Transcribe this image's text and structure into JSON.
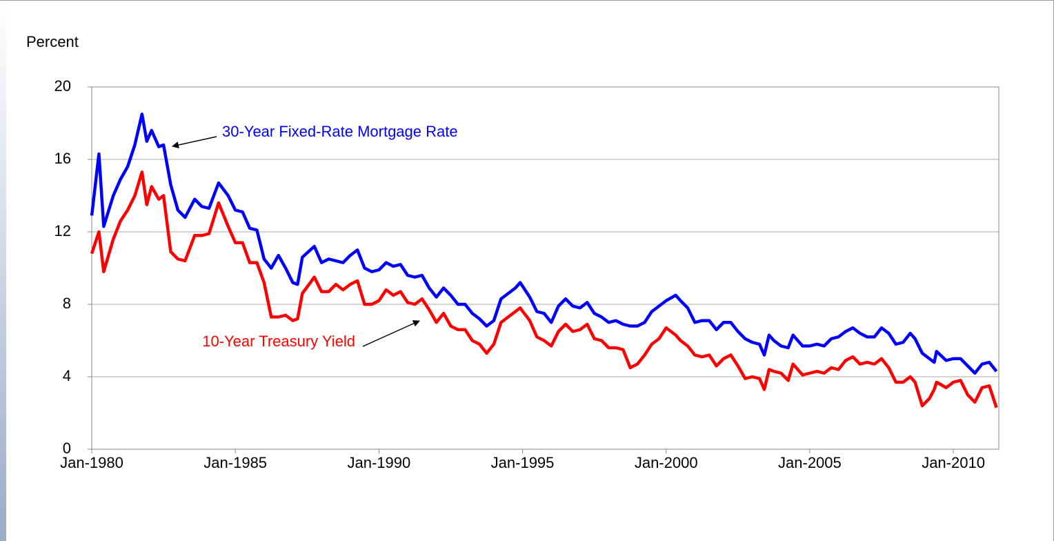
{
  "chart_data": {
    "type": "line",
    "y_label": "Percent",
    "annotations": [
      "30-Year Fixed-Rate Mortgage Rate",
      "10-Year Treasury Yield"
    ],
    "x": [
      "1980-01",
      "1980-04",
      "1980-06",
      "1980-10",
      "1981-01",
      "1981-04",
      "1981-07",
      "1981-10",
      "1981-12",
      "1982-02",
      "1982-05",
      "1982-07",
      "1982-10",
      "1983-01",
      "1983-04",
      "1983-08",
      "1983-11",
      "1984-02",
      "1984-06",
      "1984-10",
      "1985-01",
      "1985-04",
      "1985-07",
      "1985-10",
      "1986-01",
      "1986-04",
      "1986-07",
      "1986-10",
      "1987-01",
      "1987-03",
      "1987-05",
      "1987-10",
      "1988-01",
      "1988-04",
      "1988-07",
      "1988-10",
      "1989-01",
      "1989-04",
      "1989-07",
      "1989-10",
      "1990-01",
      "1990-04",
      "1990-07",
      "1990-10",
      "1991-01",
      "1991-04",
      "1991-07",
      "1991-10",
      "1992-01",
      "1992-04",
      "1992-07",
      "1992-10",
      "1993-01",
      "1993-04",
      "1993-07",
      "1993-10",
      "1994-01",
      "1994-04",
      "1994-07",
      "1994-10",
      "1994-12",
      "1995-04",
      "1995-07",
      "1995-10",
      "1996-01",
      "1996-04",
      "1996-07",
      "1996-10",
      "1997-01",
      "1997-04",
      "1997-07",
      "1997-10",
      "1998-01",
      "1998-04",
      "1998-07",
      "1998-10",
      "1999-01",
      "1999-04",
      "1999-07",
      "1999-10",
      "2000-01",
      "2000-05",
      "2000-07",
      "2000-10",
      "2001-01",
      "2001-04",
      "2001-07",
      "2001-10",
      "2002-01",
      "2002-04",
      "2002-07",
      "2002-10",
      "2003-01",
      "2003-04",
      "2003-06",
      "2003-08",
      "2003-10",
      "2004-01",
      "2004-04",
      "2004-06",
      "2004-10",
      "2005-01",
      "2005-04",
      "2005-07",
      "2005-10",
      "2006-01",
      "2006-04",
      "2006-07",
      "2006-10",
      "2007-01",
      "2007-04",
      "2007-07",
      "2007-10",
      "2008-01",
      "2008-04",
      "2008-07",
      "2008-09",
      "2008-12",
      "2009-03",
      "2009-05",
      "2009-06",
      "2009-10",
      "2010-01",
      "2010-04",
      "2010-07",
      "2010-10",
      "2011-01",
      "2011-04",
      "2011-07"
    ],
    "series": [
      {
        "name": "30-Year Fixed-Rate Mortgage Rate",
        "color": "#0000ff",
        "values": [
          12.9,
          16.3,
          12.3,
          14.0,
          14.9,
          15.6,
          16.8,
          18.5,
          17.0,
          17.6,
          16.7,
          16.8,
          14.6,
          13.2,
          12.8,
          13.8,
          13.4,
          13.3,
          14.7,
          14.0,
          13.2,
          13.1,
          12.2,
          12.1,
          10.5,
          10.0,
          10.7,
          10.0,
          9.2,
          9.1,
          10.6,
          11.2,
          10.3,
          10.5,
          10.4,
          10.3,
          10.7,
          11.0,
          10.0,
          9.8,
          9.9,
          10.3,
          10.1,
          10.2,
          9.6,
          9.5,
          9.6,
          8.9,
          8.4,
          8.9,
          8.5,
          8.0,
          8.0,
          7.5,
          7.2,
          6.8,
          7.1,
          8.3,
          8.6,
          8.9,
          9.2,
          8.4,
          7.6,
          7.5,
          7.0,
          7.9,
          8.3,
          7.9,
          7.8,
          8.1,
          7.5,
          7.3,
          7.0,
          7.1,
          6.9,
          6.8,
          6.8,
          7.0,
          7.6,
          7.9,
          8.2,
          8.5,
          8.2,
          7.8,
          7.0,
          7.1,
          7.1,
          6.6,
          7.0,
          7.0,
          6.5,
          6.1,
          5.9,
          5.8,
          5.2,
          6.3,
          6.0,
          5.7,
          5.6,
          6.3,
          5.7,
          5.7,
          5.8,
          5.7,
          6.1,
          6.2,
          6.5,
          6.7,
          6.4,
          6.2,
          6.2,
          6.7,
          6.4,
          5.8,
          5.9,
          6.4,
          6.1,
          5.3,
          5.0,
          4.8,
          5.4,
          4.9,
          5.0,
          5.0,
          4.6,
          4.2,
          4.7,
          4.8,
          4.3
        ]
      },
      {
        "name": "10-Year Treasury Yield",
        "color": "#ff0000",
        "values": [
          10.8,
          12.0,
          9.8,
          11.6,
          12.6,
          13.2,
          14.0,
          15.3,
          13.5,
          14.5,
          13.8,
          14.0,
          10.9,
          10.5,
          10.4,
          11.8,
          11.8,
          11.9,
          13.6,
          12.3,
          11.4,
          11.4,
          10.3,
          10.3,
          9.2,
          7.3,
          7.3,
          7.4,
          7.1,
          7.2,
          8.6,
          9.5,
          8.7,
          8.7,
          9.1,
          8.8,
          9.1,
          9.3,
          8.0,
          8.0,
          8.2,
          8.8,
          8.5,
          8.7,
          8.1,
          8.0,
          8.3,
          7.7,
          7.0,
          7.5,
          6.8,
          6.6,
          6.6,
          6.0,
          5.8,
          5.3,
          5.8,
          7.0,
          7.3,
          7.6,
          7.8,
          7.1,
          6.2,
          6.0,
          5.7,
          6.5,
          6.9,
          6.5,
          6.6,
          6.9,
          6.1,
          6.0,
          5.6,
          5.6,
          5.5,
          4.5,
          4.7,
          5.2,
          5.8,
          6.1,
          6.7,
          6.3,
          6.0,
          5.7,
          5.2,
          5.1,
          5.2,
          4.6,
          5.0,
          5.2,
          4.6,
          3.9,
          4.0,
          3.9,
          3.3,
          4.4,
          4.3,
          4.2,
          3.8,
          4.7,
          4.1,
          4.2,
          4.3,
          4.2,
          4.5,
          4.4,
          4.9,
          5.1,
          4.7,
          4.8,
          4.7,
          5.0,
          4.5,
          3.7,
          3.7,
          4.0,
          3.7,
          2.4,
          2.8,
          3.3,
          3.7,
          3.4,
          3.7,
          3.8,
          3.0,
          2.6,
          3.4,
          3.5,
          2.3
        ]
      }
    ],
    "xlim": [
      "1980-01",
      "2011-08"
    ],
    "xticks": [
      {
        "value": "1980-01",
        "label": "Jan-1980"
      },
      {
        "value": "1985-01",
        "label": "Jan-1985"
      },
      {
        "value": "1990-01",
        "label": "Jan-1990"
      },
      {
        "value": "1995-01",
        "label": "Jan-1995"
      },
      {
        "value": "2000-01",
        "label": "Jan-2000"
      },
      {
        "value": "2005-01",
        "label": "Jan-2005"
      },
      {
        "value": "2010-01",
        "label": "Jan-2010"
      }
    ],
    "ylim": [
      0,
      20
    ],
    "yticks": [
      0,
      4,
      8,
      12,
      16,
      20
    ],
    "grid": true
  }
}
